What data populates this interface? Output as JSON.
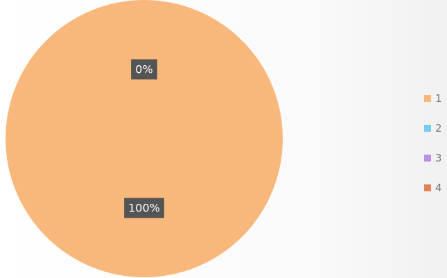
{
  "chart_data": {
    "type": "pie",
    "categories": [
      "1",
      "2",
      "3",
      "4"
    ],
    "values": [
      100,
      0,
      0,
      0
    ],
    "value_labels": [
      "100%",
      "0%",
      "0%",
      "0%"
    ],
    "colors": [
      "#f9b87b",
      "#74cdee",
      "#b592e4",
      "#e3825a"
    ],
    "legend": "right"
  }
}
